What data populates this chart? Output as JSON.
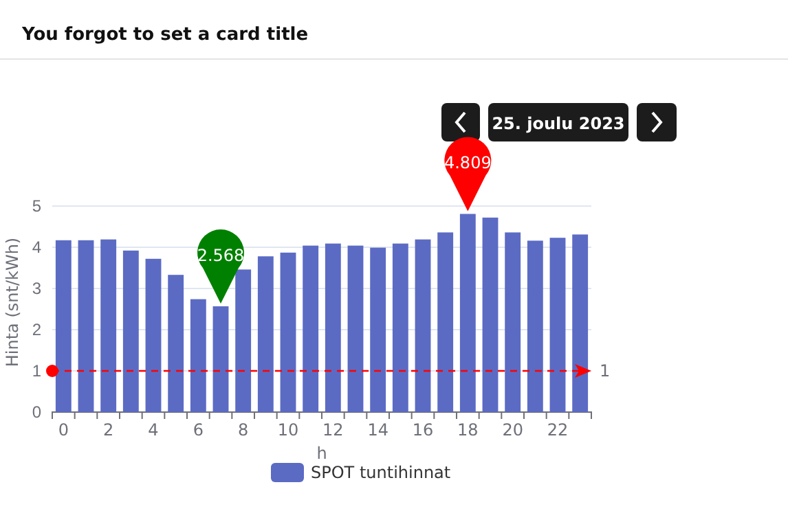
{
  "chart_data": {
    "type": "bar",
    "title": "You forgot to set a card title",
    "annotations": [
      "25. joulu 2023"
    ],
    "categories": [
      "0",
      null,
      "2",
      null,
      "4",
      null,
      "6",
      null,
      "8",
      null,
      "10",
      null,
      "12",
      null,
      "14",
      null,
      "16",
      null,
      "18",
      null,
      "20",
      null,
      "22",
      null
    ],
    "series": [
      {
        "name": "SPOT tuntihinnat",
        "color": "#5b6bc4",
        "values": [
          4.17,
          4.17,
          4.19,
          3.92,
          3.72,
          3.33,
          2.74,
          2.568,
          3.46,
          3.78,
          3.87,
          4.04,
          4.09,
          4.04,
          3.99,
          4.09,
          4.19,
          4.36,
          4.809,
          4.72,
          4.36,
          4.16,
          4.23,
          4.31
        ],
        "value_labels": [
          null,
          null,
          null,
          null,
          null,
          null,
          null,
          "2.568",
          null,
          null,
          null,
          null,
          null,
          null,
          null,
          null,
          null,
          null,
          "4.809",
          null,
          null,
          null,
          null,
          null
        ]
      }
    ],
    "xlabel": "h",
    "ylabel": "Hinta (snt/kWh)",
    "ylim": [
      0,
      5
    ],
    "yticks": [
      0,
      1,
      2,
      3,
      4,
      5
    ],
    "grid": "y",
    "legend": "bottom",
    "ref_lines": [
      {
        "axis": "y",
        "value": 1,
        "label": "1",
        "color": "#ff0000",
        "line_style": "dashed"
      }
    ]
  }
}
